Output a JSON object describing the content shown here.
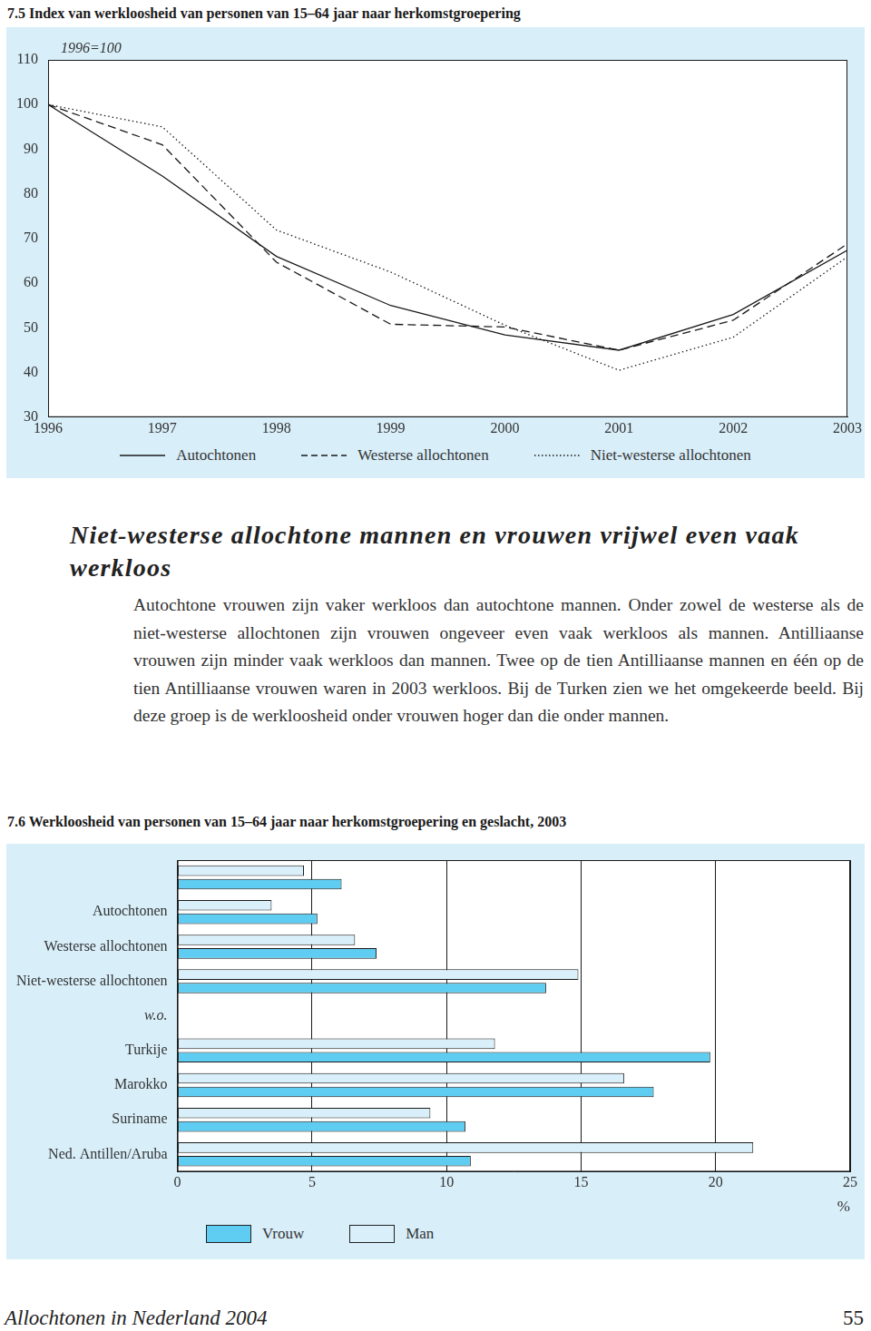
{
  "chart_data": [
    {
      "type": "line",
      "title": "7.5  Index van werkloosheid van personen van 15–64 jaar naar herkomstgroepering",
      "annotation": "1996=100",
      "x": [
        1996,
        1997,
        1998,
        1999,
        2000,
        2001,
        2002,
        2003
      ],
      "xlim": [
        1996,
        2003
      ],
      "xticks": [
        1996,
        1997,
        1998,
        1999,
        2000,
        2001,
        2002,
        2003
      ],
      "ylim": [
        30,
        110
      ],
      "yticks": [
        30,
        40,
        50,
        60,
        70,
        80,
        90,
        100,
        110
      ],
      "grid": false,
      "legend": "bottom",
      "series": [
        {
          "name": "Autochtonen",
          "color": "#1a1a1a",
          "line_style": "solid",
          "values": [
            100,
            84,
            66,
            55,
            48.4,
            45,
            53,
            67.4
          ]
        },
        {
          "name": "Westerse allochtonen",
          "color": "#1a1a1a",
          "line_style": "dashed",
          "values": [
            100,
            91,
            64.7,
            50.8,
            50.2,
            45,
            51.7,
            68.8
          ]
        },
        {
          "name": "Niet-westerse allochtonen",
          "color": "#1a1a1a",
          "line_style": "dotted",
          "values": [
            100,
            95,
            71.9,
            62.5,
            50.6,
            40.5,
            47.9,
            65.9
          ]
        }
      ]
    },
    {
      "type": "bar",
      "orientation": "horizontal",
      "title": "7.6  Werkloosheid van personen van 15–64 jaar naar herkomstgroepering en geslacht, 2003",
      "categories": [
        null,
        "Autochtonen",
        "Westerse allochtonen",
        "Niet-westerse allochtonen",
        "w.o.",
        "Turkije",
        "Marokko",
        "Suriname",
        "Ned. Antillen/Aruba"
      ],
      "xlim": [
        0,
        25
      ],
      "xticks": [
        0,
        5,
        10,
        15,
        20,
        25
      ],
      "x_label": "%",
      "grid": true,
      "legend": "bottom",
      "series": [
        {
          "name": "Man",
          "color": "#d9f0fa",
          "values": [
            4.7,
            3.5,
            6.6,
            14.9,
            null,
            11.8,
            16.6,
            9.4,
            21.4
          ]
        },
        {
          "name": "Vrouw",
          "color": "#5fcdf2",
          "values": [
            6.1,
            5.2,
            7.4,
            13.7,
            null,
            19.8,
            17.7,
            10.7,
            10.9
          ]
        }
      ]
    }
  ],
  "heading": "Niet-westerse allochtone mannen en vrouwen vrijwel even vaak werkloos",
  "paragraph": "Autochtone vrouwen zijn vaker werkloos dan autochtone mannen. Onder zowel de westerse als de niet-westerse allochtonen zijn vrouwen ongeveer even vaak werkloos als mannen. Antilliaanse vrouwen zijn minder vaak werkloos dan mannen. Twee op de tien Antilliaanse mannen en één op de tien Antilliaanse vrouwen waren in 2003 werkloos. Bij de Turken zien we het omgekeerde beeld. Bij deze groep is de werkloosheid onder vrouwen hoger dan die onder mannen.",
  "footer": {
    "title": "Allochtonen in Nederland 2004",
    "page": "55"
  }
}
